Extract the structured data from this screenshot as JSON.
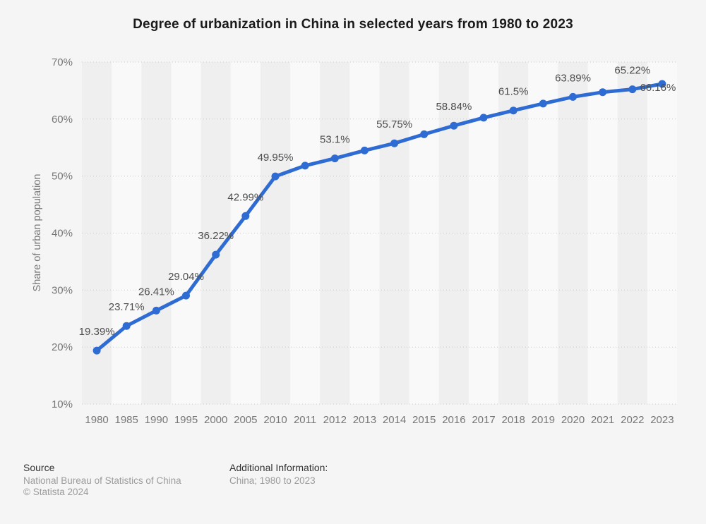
{
  "title": "Degree of urbanization in China in selected years from 1980 to 2023",
  "colors": {
    "background": "#f5f5f5",
    "line": "#2e6cd4",
    "point": "#2e6cd4",
    "band_dark": "#efefef",
    "band_light": "#f9f9f9",
    "gridline": "#c9c9c9",
    "axis_text": "#767676",
    "data_label": "#4d4d4d",
    "title_text": "#1a1a1a"
  },
  "chart_data": {
    "type": "line",
    "title": "Degree of urbanization in China in selected years from 1980 to 2023",
    "xlabel": "",
    "ylabel": "Share of urban population",
    "ylim": [
      10,
      70
    ],
    "y_tick_step": 10,
    "y_ticks": [
      "70%",
      "60%",
      "50%",
      "40%",
      "30%",
      "20%",
      "10%"
    ],
    "grid": "horizontal-dotted",
    "legend": "none",
    "plot_bands": "alternating-vertical",
    "categories": [
      "1980",
      "1985",
      "1990",
      "1995",
      "2000",
      "2005",
      "2010",
      "2011",
      "2012",
      "2013",
      "2014",
      "2015",
      "2016",
      "2017",
      "2018",
      "2019",
      "2020",
      "2021",
      "2022",
      "2023"
    ],
    "values": [
      19.39,
      23.71,
      26.41,
      29.04,
      36.22,
      42.99,
      49.95,
      51.83,
      53.1,
      54.49,
      55.75,
      57.33,
      58.84,
      60.24,
      61.5,
      62.71,
      63.89,
      64.72,
      65.22,
      66.16
    ],
    "point_labels": [
      "19.39%",
      "23.71%",
      "26.41%",
      "29.04%",
      "36.22%",
      "42.99%",
      "49.95%",
      "",
      "53.1%",
      "",
      "55.75%",
      "",
      "58.84%",
      "",
      "61.5%",
      "",
      "63.89%",
      "",
      "65.22%",
      "66.16%"
    ]
  },
  "footer": {
    "source_heading": "Source",
    "source_name": "National Bureau of Statistics of China",
    "copyright": "© Statista 2024",
    "additional_heading": "Additional Information:",
    "additional_value": "China; 1980 to 2023"
  }
}
